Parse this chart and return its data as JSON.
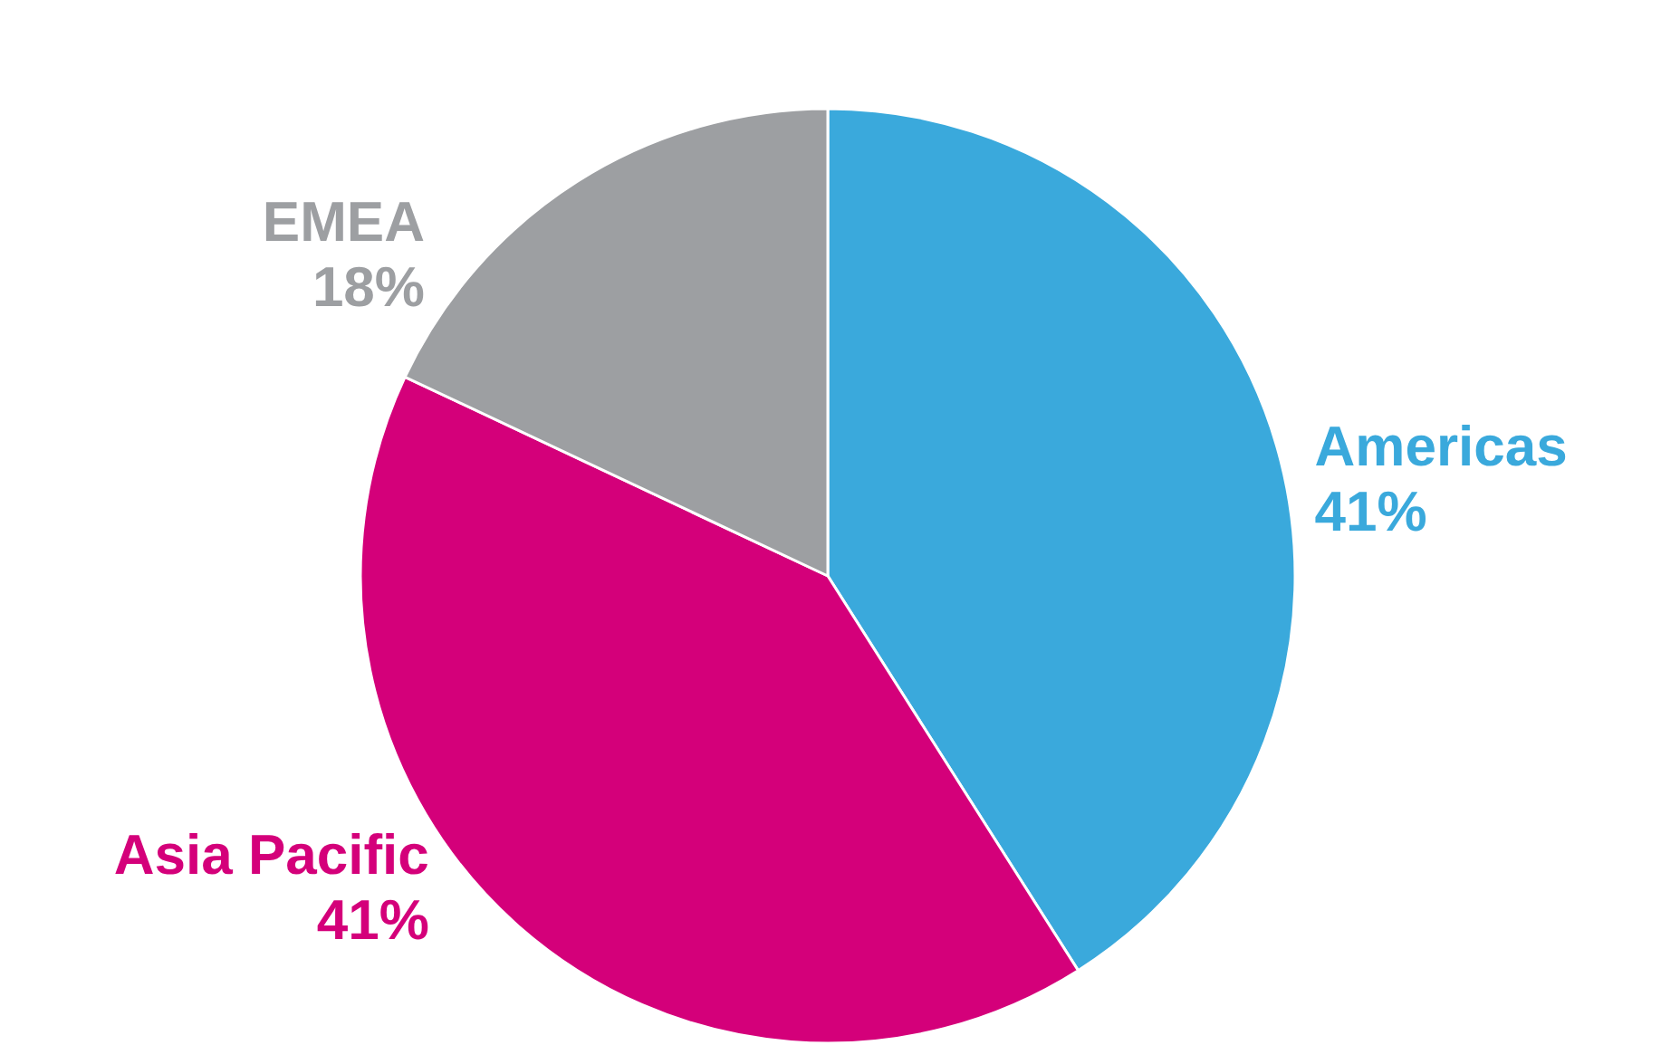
{
  "chart_data": {
    "type": "pie",
    "categories": [
      "Americas",
      "Asia Pacific",
      "EMEA"
    ],
    "values": [
      41,
      41,
      18
    ],
    "value_labels": [
      "41%",
      "41%",
      "18%"
    ],
    "colors": [
      "#3aa9dc",
      "#d4007a",
      "#9d9fa2"
    ]
  }
}
